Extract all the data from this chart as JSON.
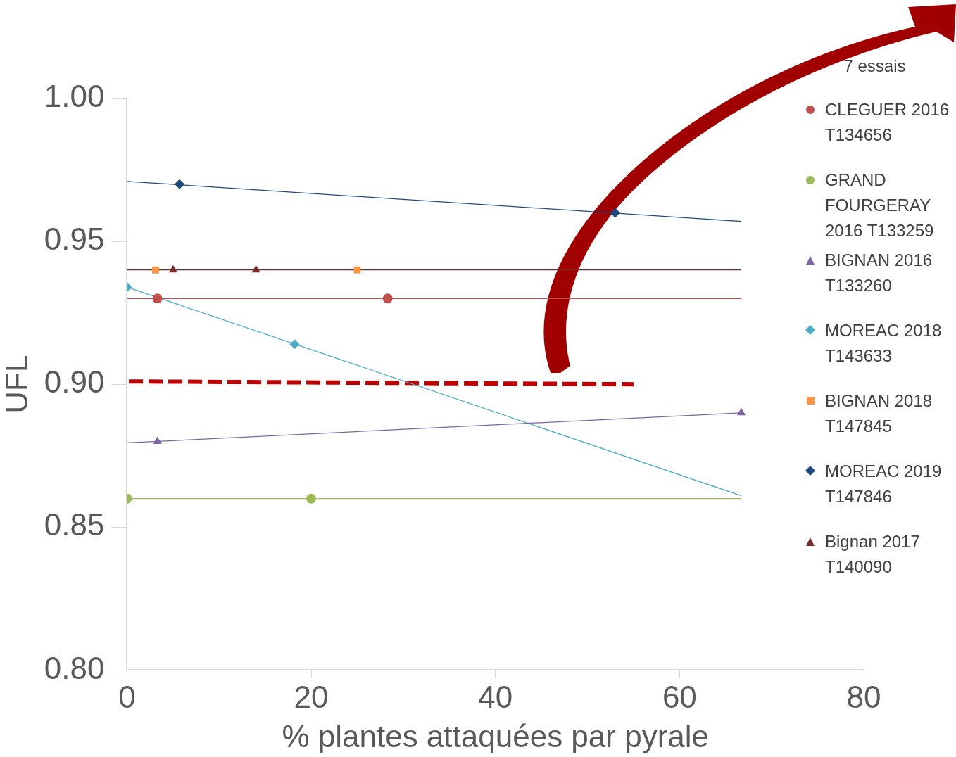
{
  "chart_data": {
    "type": "scatter",
    "xlabel": "% plantes attaquées par pyrale",
    "ylabel": "UFL",
    "legend_title": "7 essais",
    "legend": "right",
    "grid": false,
    "xlim": [
      0,
      80
    ],
    "xticks": [
      0,
      20,
      40,
      60,
      80
    ],
    "ylim": [
      0.8,
      1.0
    ],
    "yticks": [
      {
        "value": 0.8,
        "label": "0.80"
      },
      {
        "value": 0.85,
        "label": "0.85"
      },
      {
        "value": 0.9,
        "label": "0.90"
      },
      {
        "value": 0.95,
        "label": "0.95"
      },
      {
        "value": 1.0,
        "label": "1.00"
      }
    ],
    "series": [
      {
        "name": "CLEGUER 2016 T134656",
        "color": "#c0504d",
        "marker": "circle",
        "x": [
          3.3,
          28.3
        ],
        "values": [
          0.93,
          0.93
        ]
      },
      {
        "name": "GRAND FOURGERAY 2016 T133259",
        "color": "#9bbb59",
        "marker": "circle",
        "x": [
          0,
          20
        ],
        "values": [
          0.86,
          0.86
        ]
      },
      {
        "name": "BIGNAN 2016 T133260",
        "color": "#8064a2",
        "marker": "triangle",
        "x": [
          3.3,
          66.7
        ],
        "values": [
          0.88,
          0.89
        ]
      },
      {
        "name": "MOREAC 2018 T143633",
        "color": "#4bacc6",
        "marker": "diamond",
        "x": [
          0,
          18.2
        ],
        "values": [
          0.934,
          0.914
        ]
      },
      {
        "name": "BIGNAN  2018 T147845",
        "color": "#f79646",
        "marker": "square",
        "x": [
          3.1,
          25
        ],
        "values": [
          0.94,
          0.94
        ]
      },
      {
        "name": "MOREAC 2019 T147846",
        "color": "#1f497d",
        "marker": "diamond",
        "x": [
          5.7,
          53
        ],
        "values": [
          0.97,
          0.96
        ]
      },
      {
        "name": "Bignan 2017 T140090",
        "color": "#772c2a",
        "marker": "triangle",
        "x": [
          5,
          14
        ],
        "values": [
          0.94,
          0.94
        ]
      },
      {
        "type": "line",
        "color": "#c0504d",
        "x": [
          0,
          66.7
        ],
        "values": [
          0.93,
          0.93
        ]
      },
      {
        "type": "line",
        "color": "#9bbb59",
        "x": [
          0,
          66.7
        ],
        "values": [
          0.86,
          0.86
        ]
      },
      {
        "type": "line",
        "color": "#8064a2",
        "x": [
          0,
          66.7
        ],
        "values": [
          0.8795,
          0.89
        ]
      },
      {
        "type": "line",
        "color": "#4bacc6",
        "x": [
          0,
          66.7
        ],
        "values": [
          0.934,
          0.861
        ]
      },
      {
        "type": "line",
        "color": "#1f497d",
        "x": [
          0,
          66.7
        ],
        "values": [
          0.971,
          0.957
        ]
      },
      {
        "type": "line",
        "color": "#772c2a",
        "x": [
          0,
          66.7
        ],
        "values": [
          0.94,
          0.94
        ]
      },
      {
        "type": "line",
        "color": "#c00000",
        "line_style": "dashed",
        "x": [
          0.2,
          55
        ],
        "values": [
          0.901,
          0.9
        ]
      }
    ]
  }
}
